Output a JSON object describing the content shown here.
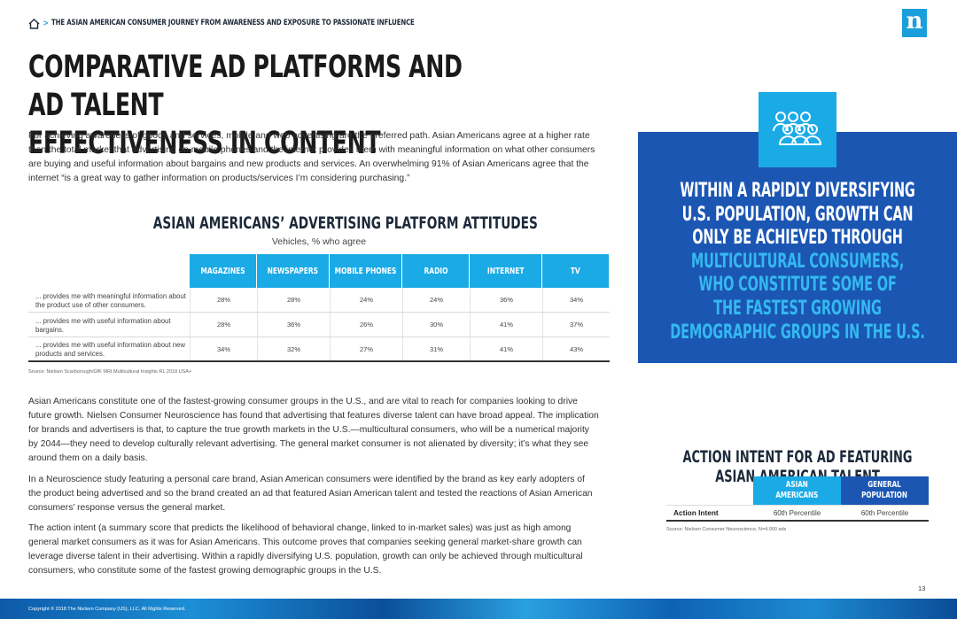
{
  "breadcrumb": {
    "separator": ">",
    "text": "THE ASIAN AMERICAN CONSUMER JOURNEY FROM AWARENESS AND EXPOSURE TO PASSIONATE INFLUENCE"
  },
  "logo": {
    "letter": "n"
  },
  "title": "COMPARATIVE AD PLATFORMS AND AD TALENT\nEFFECTIVENESS IN CONTENT",
  "intro": "For achieving awareness of goods and services, mobile and web advertising are the preferred path. Asian Americans agree at a higher rate than the total market that advertising on mobile phones and the internet provides them with meaningful information on what other consumers are buying and useful information about bargains and new products and services. An overwhelming 91% of Asian Americans agree that the internet “is a great way to gather information on products/services I’m considering purchasing.”",
  "platform_table": {
    "title": "ASIAN AMERICANS’ ADVERTISING PLATFORM ATTITUDES",
    "subtitle": "Vehicles, % who agree",
    "columns": [
      "MAGAZINES",
      "NEWSPAPERS",
      "MOBILE PHONES",
      "RADIO",
      "INTERNET",
      "TV"
    ],
    "rows": [
      {
        "label": "... provides me with meaningful information about the product use of other consumers.",
        "values": [
          "28%",
          "28%",
          "24%",
          "24%",
          "36%",
          "34%"
        ]
      },
      {
        "label": "... provides me with useful information about bargains.",
        "values": [
          "28%",
          "36%",
          "26%",
          "30%",
          "41%",
          "37%"
        ]
      },
      {
        "label": "... provides me with useful information about new products and services.",
        "values": [
          "34%",
          "32%",
          "27%",
          "31%",
          "41%",
          "43%"
        ]
      }
    ],
    "source": "Source: Nielsen Scarborough/GfK MRI Multicultural Insights R1 2018 USA+"
  },
  "paragraphs": [
    "Asian Americans constitute one of the fastest-growing consumer groups in the U.S., and are vital to reach for companies looking to drive future growth. Nielsen Consumer Neuroscience has found that advertising that features diverse talent can have broad appeal. The implication for brands and advertisers is that, to capture the true growth markets in the U.S.—multicultural consumers, who will be a numerical majority by 2044—they need to develop culturally relevant advertising. The general market consumer is not alienated by diversity; it’s what they see around them on a daily basis.",
    "In a Neuroscience study featuring a personal care brand, Asian American consumers were identified by the brand as key early adopters of the product being advertised and so the brand created an ad that featured Asian American talent and tested the reactions of Asian American consumers’ response versus the general market.",
    "The action intent (a summary score that predicts the likelihood of behavioral change, linked to in-market sales) was just as high among general market consumers as it was for Asian Americans. This outcome proves that companies seeking general market-share growth can leverage diverse talent in their advertising. Within a rapidly diversifying U.S. population, growth can only be achieved through multicultural consumers, who constitute some of the fastest growing demographic groups in the U.S."
  ],
  "callout": {
    "icon": "people-group-icon",
    "white_text": "WITHIN A RAPIDLY DIVERSIFYING\nU.S. POPULATION, GROWTH CAN\nONLY BE ACHIEVED THROUGH",
    "blue_text": "MULTICULTURAL CONSUMERS,\nWHO CONSTITUTE SOME OF\nTHE FASTEST GROWING\nDEMOGRAPHIC GROUPS IN THE U.S.",
    "panel_color": "#1b56b3",
    "accent_color": "#1aaae6"
  },
  "action_table": {
    "title": "ACTION INTENT FOR AD FEATURING\nASIAN AMERICAN TALENT",
    "col1": "ASIAN\nAMERICANS",
    "col2": "GENERAL\nPOPULATION",
    "row_label": "Action Intent",
    "values": [
      "60th Percentile",
      "60th Percentile"
    ],
    "source": "Source: Nielsen Consumer Neuroscience, N=4,000 ads"
  },
  "page_number": "13",
  "footer": "Copyright © 2018 The Nielsen Company (US), LLC. All Rights Reserved."
}
